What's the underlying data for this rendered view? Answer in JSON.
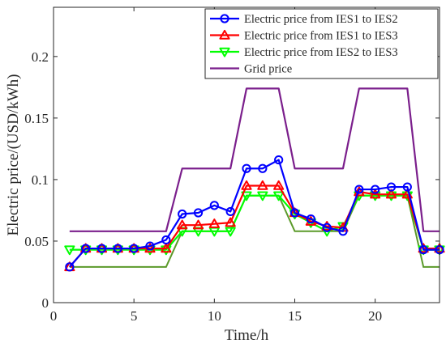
{
  "chart_data": {
    "type": "line",
    "xlabel": "Time/h",
    "ylabel": "Electric price/(USD/kWh)",
    "xlim": [
      0,
      24
    ],
    "ylim": [
      0,
      0.24
    ],
    "xticks": [
      0,
      5,
      10,
      15,
      20
    ],
    "yticks": [
      0,
      0.05,
      0.1,
      0.15,
      0.2
    ],
    "xtick_labels": [
      "0",
      "5",
      "10",
      "15",
      "20"
    ],
    "ytick_labels": [
      "0",
      "0.05",
      "0.1",
      "0.15",
      "0.2"
    ],
    "grid": false,
    "legend_position": "top-right",
    "x": [
      1,
      2,
      3,
      4,
      5,
      6,
      7,
      8,
      9,
      10,
      11,
      12,
      13,
      14,
      15,
      16,
      17,
      18,
      19,
      20,
      21,
      22,
      23,
      24
    ],
    "series": [
      {
        "name": "Electric price from IES1 to IES2",
        "color": "#0000ff",
        "marker": "circle",
        "values": [
          0.029,
          0.044,
          0.044,
          0.044,
          0.044,
          0.046,
          0.051,
          0.072,
          0.073,
          0.079,
          0.074,
          0.109,
          0.109,
          0.116,
          0.073,
          0.068,
          0.061,
          0.058,
          0.092,
          0.092,
          0.094,
          0.094,
          0.043,
          0.043
        ]
      },
      {
        "name": "Electric price from IES1 to IES3",
        "color": "#ff0000",
        "marker": "triangle-up",
        "values": [
          0.029,
          0.044,
          0.044,
          0.044,
          0.044,
          0.044,
          0.044,
          0.063,
          0.063,
          0.064,
          0.065,
          0.095,
          0.095,
          0.095,
          0.073,
          0.066,
          0.062,
          0.061,
          0.09,
          0.088,
          0.088,
          0.088,
          0.044,
          0.044
        ]
      },
      {
        "name": "Electric price from IES2 to IES3",
        "color": "#00ff00",
        "marker": "triangle-down",
        "values": [
          0.043,
          0.043,
          0.043,
          0.043,
          0.043,
          0.043,
          0.043,
          0.058,
          0.058,
          0.058,
          0.058,
          0.087,
          0.087,
          0.087,
          0.072,
          0.065,
          0.058,
          0.062,
          0.087,
          0.087,
          0.087,
          0.087,
          0.043,
          0.043
        ]
      },
      {
        "name": "Grid price",
        "color": "#7b1f8c",
        "marker": "none",
        "values": [
          0.058,
          0.058,
          0.058,
          0.058,
          0.058,
          0.058,
          0.058,
          0.109,
          0.109,
          0.109,
          0.109,
          0.174,
          0.174,
          0.174,
          0.109,
          0.109,
          0.109,
          0.109,
          0.174,
          0.174,
          0.174,
          0.174,
          0.058,
          0.058
        ]
      }
    ],
    "other_lines": [
      {
        "color": "#5b9a2a",
        "values": [
          0.029,
          0.029,
          0.029,
          0.029,
          0.029,
          0.029,
          0.029,
          0.058,
          0.058,
          0.058,
          0.058,
          0.087,
          0.087,
          0.087,
          0.058,
          0.058,
          0.058,
          0.058,
          0.087,
          0.087,
          0.087,
          0.087,
          0.029,
          0.029
        ]
      }
    ]
  }
}
